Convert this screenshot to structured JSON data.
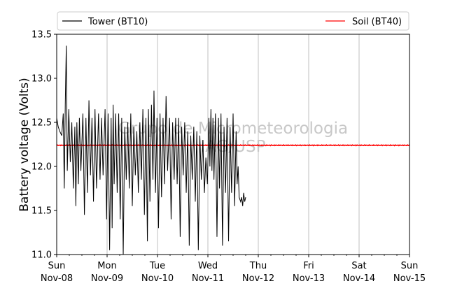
{
  "chart_data": {
    "type": "line",
    "ylabel": "Battery voltage (Volts)",
    "ylim": [
      11.0,
      13.5
    ],
    "yticks": [
      11.0,
      11.5,
      12.0,
      12.5,
      13.0,
      13.5
    ],
    "ytick_labels": [
      "11.0",
      "11.5",
      "12.0",
      "12.5",
      "13.0",
      "13.5"
    ],
    "xlim_days": [
      0,
      7
    ],
    "xticks": [
      {
        "day": "Sun",
        "date": "Nov-08"
      },
      {
        "day": "Mon",
        "date": "Nov-09"
      },
      {
        "day": "Tue",
        "date": "Nov-10"
      },
      {
        "day": "Wed",
        "date": "Nov-11"
      },
      {
        "day": "Thu",
        "date": "Nov-12"
      },
      {
        "day": "Fri",
        "date": "Nov-13"
      },
      {
        "day": "Sat",
        "date": "Nov-14"
      },
      {
        "day": "Sun",
        "date": "Nov-15"
      }
    ],
    "grid": "vertical",
    "legend_position": "top",
    "watermark": [
      "Grupo de Micrometeorologia",
      "IAG/USP"
    ],
    "series": [
      {
        "name": "Tower (BT10)",
        "color": "#000000",
        "data_range": [
          0,
          3.75
        ],
        "points": [
          [
            0.0,
            12.55
          ],
          [
            0.03,
            12.45
          ],
          [
            0.06,
            12.4
          ],
          [
            0.1,
            12.35
          ],
          [
            0.13,
            12.6
          ],
          [
            0.15,
            11.75
          ],
          [
            0.17,
            12.7
          ],
          [
            0.19,
            13.37
          ],
          [
            0.21,
            11.95
          ],
          [
            0.24,
            12.65
          ],
          [
            0.27,
            12.05
          ],
          [
            0.3,
            12.5
          ],
          [
            0.33,
            11.75
          ],
          [
            0.36,
            12.45
          ],
          [
            0.38,
            11.55
          ],
          [
            0.4,
            12.5
          ],
          [
            0.43,
            11.8
          ],
          [
            0.45,
            12.55
          ],
          [
            0.48,
            11.95
          ],
          [
            0.52,
            12.6
          ],
          [
            0.55,
            11.45
          ],
          [
            0.58,
            12.55
          ],
          [
            0.61,
            11.7
          ],
          [
            0.64,
            12.75
          ],
          [
            0.67,
            11.9
          ],
          [
            0.7,
            12.55
          ],
          [
            0.73,
            11.6
          ],
          [
            0.76,
            12.65
          ],
          [
            0.79,
            11.75
          ],
          [
            0.83,
            12.6
          ],
          [
            0.86,
            11.85
          ],
          [
            0.89,
            12.55
          ],
          [
            0.92,
            11.9
          ],
          [
            0.96,
            12.65
          ],
          [
            0.99,
            11.4
          ],
          [
            1.02,
            12.6
          ],
          [
            1.05,
            11.05
          ],
          [
            1.08,
            12.55
          ],
          [
            1.1,
            11.3
          ],
          [
            1.12,
            12.7
          ],
          [
            1.14,
            11.8
          ],
          [
            1.17,
            12.6
          ],
          [
            1.2,
            11.7
          ],
          [
            1.23,
            12.6
          ],
          [
            1.26,
            11.4
          ],
          [
            1.29,
            12.55
          ],
          [
            1.32,
            11.0
          ],
          [
            1.35,
            12.45
          ],
          [
            1.38,
            11.85
          ],
          [
            1.41,
            12.5
          ],
          [
            1.44,
            11.75
          ],
          [
            1.47,
            12.6
          ],
          [
            1.5,
            11.55
          ],
          [
            1.53,
            12.45
          ],
          [
            1.56,
            11.9
          ],
          [
            1.59,
            12.4
          ],
          [
            1.62,
            11.7
          ],
          [
            1.65,
            12.5
          ],
          [
            1.68,
            11.85
          ],
          [
            1.71,
            12.65
          ],
          [
            1.74,
            11.45
          ],
          [
            1.77,
            12.55
          ],
          [
            1.8,
            11.15
          ],
          [
            1.82,
            12.65
          ],
          [
            1.85,
            11.6
          ],
          [
            1.88,
            12.7
          ],
          [
            1.91,
            11.85
          ],
          [
            1.93,
            12.86
          ],
          [
            1.96,
            11.7
          ],
          [
            1.99,
            12.55
          ],
          [
            2.02,
            11.3
          ],
          [
            2.05,
            12.6
          ],
          [
            2.08,
            11.65
          ],
          [
            2.11,
            12.55
          ],
          [
            2.14,
            11.8
          ],
          [
            2.17,
            12.8
          ],
          [
            2.2,
            11.95
          ],
          [
            2.24,
            12.55
          ],
          [
            2.27,
            11.4
          ],
          [
            2.3,
            12.5
          ],
          [
            2.33,
            11.85
          ],
          [
            2.36,
            12.55
          ],
          [
            2.39,
            11.8
          ],
          [
            2.42,
            12.55
          ],
          [
            2.45,
            11.2
          ],
          [
            2.48,
            12.45
          ],
          [
            2.51,
            11.9
          ],
          [
            2.54,
            12.5
          ],
          [
            2.57,
            11.7
          ],
          [
            2.6,
            12.4
          ],
          [
            2.63,
            11.1
          ],
          [
            2.66,
            12.35
          ],
          [
            2.69,
            11.85
          ],
          [
            2.72,
            12.45
          ],
          [
            2.75,
            11.6
          ],
          [
            2.78,
            12.4
          ],
          [
            2.81,
            11.05
          ],
          [
            2.84,
            12.35
          ],
          [
            2.87,
            11.85
          ],
          [
            2.9,
            12.3
          ],
          [
            2.93,
            11.7
          ],
          [
            2.96,
            12.1
          ],
          [
            2.99,
            11.8
          ],
          [
            3.02,
            12.55
          ],
          [
            3.04,
            12.0
          ],
          [
            3.06,
            12.65
          ],
          [
            3.08,
            11.95
          ],
          [
            3.1,
            12.55
          ],
          [
            3.12,
            11.85
          ],
          [
            3.15,
            12.6
          ],
          [
            3.18,
            11.2
          ],
          [
            3.21,
            12.55
          ],
          [
            3.23,
            11.75
          ],
          [
            3.26,
            12.6
          ],
          [
            3.29,
            11.1
          ],
          [
            3.32,
            12.45
          ],
          [
            3.35,
            11.7
          ],
          [
            3.38,
            12.55
          ],
          [
            3.41,
            11.15
          ],
          [
            3.44,
            12.45
          ],
          [
            3.47,
            11.7
          ],
          [
            3.5,
            12.6
          ],
          [
            3.53,
            11.55
          ],
          [
            3.56,
            12.4
          ],
          [
            3.58,
            11.8
          ],
          [
            3.6,
            12.0
          ],
          [
            3.62,
            11.65
          ],
          [
            3.65,
            11.6
          ],
          [
            3.67,
            11.65
          ],
          [
            3.69,
            11.55
          ],
          [
            3.71,
            11.7
          ],
          [
            3.73,
            11.6
          ],
          [
            3.75,
            11.65
          ]
        ]
      },
      {
        "name": "Soil (BT40)",
        "color": "#ff0000",
        "data_range": [
          0,
          7
        ],
        "value": 12.24,
        "noise": 0.005
      }
    ]
  }
}
